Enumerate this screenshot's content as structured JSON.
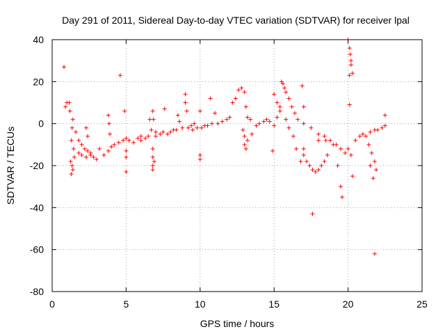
{
  "chart_data": {
    "type": "scatter",
    "title": "Day 291 of 2011, Sidereal Day-to-day VTEC variation (SDTVAR) for receiver lpal",
    "xlabel": "GPS time / hours",
    "ylabel": "SDTVAR / TECUs",
    "xlim": [
      0,
      25
    ],
    "ylim": [
      -80,
      40
    ],
    "x_ticks": [
      0,
      5,
      10,
      15,
      20,
      25
    ],
    "y_ticks": [
      -80,
      -60,
      -40,
      -20,
      0,
      20,
      40
    ],
    "x_tick_labels": [
      "0",
      "5",
      "10",
      "15",
      "20",
      "25"
    ],
    "y_tick_labels": [
      "-80",
      "-60",
      "-40",
      "-20",
      "0",
      "20",
      "40"
    ],
    "grid": true,
    "marker": "plus",
    "series": [
      {
        "name": "SDTVAR",
        "color": "#ff0000",
        "points": [
          [
            0.8,
            27
          ],
          [
            0.9,
            8
          ],
          [
            1.0,
            10
          ],
          [
            1.15,
            10
          ],
          [
            1.2,
            6
          ],
          [
            1.25,
            -18
          ],
          [
            1.3,
            -24
          ],
          [
            1.35,
            -20
          ],
          [
            1.4,
            -22
          ],
          [
            1.3,
            -8
          ],
          [
            1.35,
            -2
          ],
          [
            1.4,
            2
          ],
          [
            1.45,
            -12
          ],
          [
            1.5,
            -16
          ],
          [
            1.6,
            -4
          ],
          [
            1.8,
            -8
          ],
          [
            2.0,
            -10
          ],
          [
            2.2,
            -12
          ],
          [
            2.4,
            -13
          ],
          [
            2.6,
            -15
          ],
          [
            2.8,
            -16
          ],
          [
            3.0,
            -17
          ],
          [
            1.8,
            -14
          ],
          [
            2.0,
            -15
          ],
          [
            2.3,
            -16
          ],
          [
            2.6,
            -14
          ],
          [
            3.2,
            -12
          ],
          [
            3.5,
            -15
          ],
          [
            3.8,
            -13
          ],
          [
            4.0,
            -11
          ],
          [
            2.3,
            -2
          ],
          [
            2.4,
            -6
          ],
          [
            3.8,
            4
          ],
          [
            3.85,
            0
          ],
          [
            3.9,
            -5
          ],
          [
            4.2,
            -10
          ],
          [
            4.5,
            -9
          ],
          [
            4.8,
            -8
          ],
          [
            5.0,
            -7
          ],
          [
            5.2,
            -8
          ],
          [
            5.5,
            -9
          ],
          [
            5.8,
            -7
          ],
          [
            6.0,
            -6
          ],
          [
            4.6,
            23
          ],
          [
            4.9,
            6
          ],
          [
            5.0,
            -13
          ],
          [
            5.0,
            -16
          ],
          [
            5.0,
            -23
          ],
          [
            6.0,
            -8
          ],
          [
            6.3,
            -7
          ],
          [
            6.5,
            -6
          ],
          [
            6.8,
            -12
          ],
          [
            6.8,
            -16
          ],
          [
            6.8,
            -20
          ],
          [
            6.8,
            -22
          ],
          [
            6.9,
            -18
          ],
          [
            6.6,
            2
          ],
          [
            6.7,
            -3
          ],
          [
            6.8,
            6
          ],
          [
            6.85,
            2
          ],
          [
            7.0,
            -4
          ],
          [
            7.0,
            -6
          ],
          [
            7.3,
            -5
          ],
          [
            7.5,
            -4
          ],
          [
            7.6,
            7
          ],
          [
            7.8,
            -5
          ],
          [
            8.0,
            -4
          ],
          [
            8.2,
            -3
          ],
          [
            8.4,
            -3
          ],
          [
            8.5,
            4
          ],
          [
            8.6,
            1
          ],
          [
            8.8,
            -2
          ],
          [
            9.0,
            14
          ],
          [
            9.0,
            10
          ],
          [
            9.1,
            6
          ],
          [
            9.2,
            -2
          ],
          [
            9.4,
            -1
          ],
          [
            9.5,
            -3
          ],
          [
            9.6,
            0
          ],
          [
            9.8,
            -2
          ],
          [
            10.0,
            6
          ],
          [
            10.0,
            -15
          ],
          [
            10.0,
            -17
          ],
          [
            10.1,
            -2
          ],
          [
            10.3,
            -1
          ],
          [
            10.5,
            -1
          ],
          [
            10.7,
            12
          ],
          [
            10.8,
            0
          ],
          [
            11.0,
            5
          ],
          [
            11.2,
            0
          ],
          [
            11.5,
            1
          ],
          [
            11.8,
            2
          ],
          [
            12.0,
            3
          ],
          [
            12.2,
            10
          ],
          [
            12.4,
            12
          ],
          [
            12.6,
            16
          ],
          [
            12.8,
            17
          ],
          [
            13.0,
            15
          ],
          [
            13.1,
            8
          ],
          [
            13.2,
            3
          ],
          [
            13.4,
            2
          ],
          [
            12.9,
            -3
          ],
          [
            13.0,
            -6
          ],
          [
            13.0,
            -10
          ],
          [
            13.1,
            -12
          ],
          [
            13.2,
            -8
          ],
          [
            13.5,
            -5
          ],
          [
            13.8,
            -1
          ],
          [
            14.0,
            0
          ],
          [
            14.3,
            1
          ],
          [
            14.5,
            2
          ],
          [
            14.7,
            1
          ],
          [
            14.9,
            -13
          ],
          [
            15.0,
            -1
          ],
          [
            15.2,
            3
          ],
          [
            15.4,
            8
          ],
          [
            15.5,
            20
          ],
          [
            15.6,
            19
          ],
          [
            15.7,
            17
          ],
          [
            15.8,
            15
          ],
          [
            16.0,
            12
          ],
          [
            16.2,
            8
          ],
          [
            16.4,
            5
          ],
          [
            16.6,
            2
          ],
          [
            15.0,
            14
          ],
          [
            15.2,
            10
          ],
          [
            15.4,
            6
          ],
          [
            15.8,
            2
          ],
          [
            16.0,
            -2
          ],
          [
            16.3,
            -6
          ],
          [
            16.5,
            -12
          ],
          [
            16.8,
            -18
          ],
          [
            16.9,
            18
          ],
          [
            17.0,
            8
          ],
          [
            17.0,
            -12
          ],
          [
            17.0,
            -15
          ],
          [
            17.2,
            -18
          ],
          [
            17.4,
            -20
          ],
          [
            17.6,
            -22
          ],
          [
            17.8,
            -23
          ],
          [
            18.0,
            -22
          ],
          [
            18.2,
            -20
          ],
          [
            18.4,
            -18
          ],
          [
            18.6,
            -15
          ],
          [
            17.0,
            0
          ],
          [
            17.5,
            -2
          ],
          [
            18.0,
            -5
          ],
          [
            18.5,
            -8
          ],
          [
            19.0,
            -10
          ],
          [
            19.3,
            -20
          ],
          [
            19.5,
            -30
          ],
          [
            19.6,
            -35
          ],
          [
            17.6,
            -43
          ],
          [
            18.0,
            -8
          ],
          [
            18.4,
            -6
          ],
          [
            18.8,
            -8
          ],
          [
            19.2,
            -10
          ],
          [
            19.5,
            -12
          ],
          [
            19.8,
            -14
          ],
          [
            20.0,
            -12
          ],
          [
            20.1,
            9
          ],
          [
            20.1,
            23
          ],
          [
            20.2,
            28
          ],
          [
            20.0,
            40
          ],
          [
            20.1,
            36
          ],
          [
            20.15,
            33
          ],
          [
            20.2,
            30
          ],
          [
            20.3,
            24
          ],
          [
            20.2,
            -15
          ],
          [
            20.3,
            -25
          ],
          [
            20.5,
            -8
          ],
          [
            20.8,
            -6
          ],
          [
            21.0,
            -5
          ],
          [
            21.2,
            -6
          ],
          [
            21.4,
            -10
          ],
          [
            21.6,
            -14
          ],
          [
            21.8,
            -18
          ],
          [
            21.9,
            -22
          ],
          [
            21.5,
            -4
          ],
          [
            21.8,
            -3
          ],
          [
            22.0,
            -3
          ],
          [
            22.3,
            -2
          ],
          [
            22.5,
            -1
          ],
          [
            22.5,
            4
          ],
          [
            21.5,
            -20
          ],
          [
            21.7,
            -26
          ],
          [
            21.8,
            -62
          ]
        ]
      }
    ]
  }
}
